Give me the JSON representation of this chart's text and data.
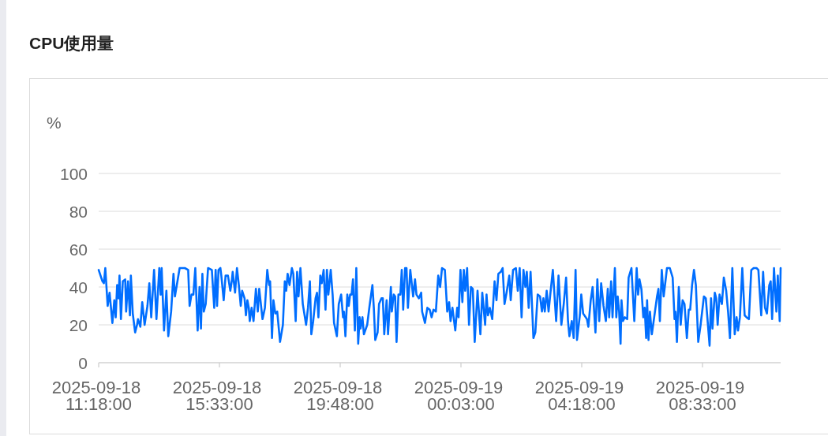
{
  "chart_data": {
    "type": "line",
    "title": "CPU使用量",
    "ylabel": "%",
    "xlim": [
      "2025-09-18T11:18",
      "2025-09-19T11:18"
    ],
    "xticks": [
      {
        "value": "2025-09-18T11:18",
        "label": "2025-09-18 11:18:00"
      },
      {
        "value": "2025-09-18T15:33",
        "label": "2025-09-18 15:33:00"
      },
      {
        "value": "2025-09-18T19:48",
        "label": "2025-09-18 19:48:00"
      },
      {
        "value": "2025-09-19T00:03",
        "label": "2025-09-19 00:03:00"
      },
      {
        "value": "2025-09-19T04:18",
        "label": "2025-09-19 04:18:00"
      },
      {
        "value": "2025-09-19T08:33",
        "label": "2025-09-19 08:33:00"
      }
    ],
    "ylim": [
      0,
      100
    ],
    "yticks": [
      0,
      20,
      40,
      60,
      80,
      100
    ],
    "grid": "y",
    "series": [
      {
        "color": "#006eff",
        "x": [
          "2025-09-18T11:18",
          "2025-09-18T11:26",
          "2025-09-18T11:29",
          "2025-09-18T11:32",
          "2025-09-18T11:37",
          "2025-09-18T11:41",
          "2025-09-18T11:47",
          "2025-09-18T11:51",
          "2025-09-18T11:54",
          "2025-09-18T11:57",
          "2025-09-18T12:00",
          "2025-09-18T12:02",
          "2025-09-18T12:05",
          "2025-09-18T12:09",
          "2025-09-18T12:14",
          "2025-09-18T12:16",
          "2025-09-18T12:20",
          "2025-09-18T12:24",
          "2025-09-18T12:26",
          "2025-09-18T12:30",
          "2025-09-18T12:35",
          "2025-09-18T12:39",
          "2025-09-18T12:41",
          "2025-09-18T12:46",
          "2025-09-18T12:50",
          "2025-09-18T12:55",
          "2025-09-18T13:01",
          "2025-09-18T13:05",
          "2025-09-18T13:09",
          "2025-09-18T13:15",
          "2025-09-18T13:20",
          "2025-09-18T13:26",
          "2025-09-18T13:29",
          "2025-09-18T13:31",
          "2025-09-18T13:36",
          "2025-09-18T13:41",
          "2025-09-18T13:45",
          "2025-09-18T13:51",
          "2025-09-18T13:56",
          "2025-09-18T13:59",
          "2025-09-18T14:09",
          "2025-09-18T14:20",
          "2025-09-18T14:27",
          "2025-09-18T14:30",
          "2025-09-18T14:34",
          "2025-09-18T14:38",
          "2025-09-18T14:42",
          "2025-09-18T14:47",
          "2025-09-18T14:51",
          "2025-09-18T14:54",
          "2025-09-18T14:57",
          "2025-09-18T15:00",
          "2025-09-18T15:04",
          "2025-09-18T15:09",
          "2025-09-18T15:17",
          "2025-09-18T15:22",
          "2025-09-18T15:25",
          "2025-09-18T15:28",
          "2025-09-18T15:31",
          "2025-09-18T15:35",
          "2025-09-18T15:37",
          "2025-09-18T15:42",
          "2025-09-18T15:46",
          "2025-09-18T15:51",
          "2025-09-18T15:56",
          "2025-09-18T15:59",
          "2025-09-18T16:01",
          "2025-09-18T16:06",
          "2025-09-18T16:10",
          "2025-09-18T16:14",
          "2025-09-18T16:18",
          "2025-09-18T16:21",
          "2025-09-18T16:26",
          "2025-09-18T16:29",
          "2025-09-18T16:32",
          "2025-09-18T16:35",
          "2025-09-18T16:37",
          "2025-09-18T16:41",
          "2025-09-18T16:45",
          "2025-09-18T16:50",
          "2025-09-18T16:54",
          "2025-09-18T16:57",
          "2025-09-18T17:04",
          "2025-09-18T17:09",
          "2025-09-18T17:14",
          "2025-09-18T17:18",
          "2025-09-18T17:20",
          "2025-09-18T17:24",
          "2025-09-18T17:27",
          "2025-09-18T17:31",
          "2025-09-18T17:35",
          "2025-09-18T17:41",
          "2025-09-18T17:47",
          "2025-09-18T17:51",
          "2025-09-18T17:54",
          "2025-09-18T17:57",
          "2025-09-18T18:01",
          "2025-09-18T18:06",
          "2025-09-18T18:09",
          "2025-09-18T18:14",
          "2025-09-18T18:17",
          "2025-09-18T18:20",
          "2025-09-18T18:24",
          "2025-09-18T18:29",
          "2025-09-18T18:36",
          "2025-09-18T18:40",
          "2025-09-18T18:44",
          "2025-09-18T18:47",
          "2025-09-18T18:51",
          "2025-09-18T18:56",
          "2025-09-18T18:59",
          "2025-09-18T19:02",
          "2025-09-18T19:06",
          "2025-09-18T19:09",
          "2025-09-18T19:13",
          "2025-09-18T19:17",
          "2025-09-18T19:20",
          "2025-09-18T19:23",
          "2025-09-18T19:28",
          "2025-09-18T19:32",
          "2025-09-18T19:35",
          "2025-09-18T19:41",
          "2025-09-18T19:45",
          "2025-09-18T19:50",
          "2025-09-18T19:54",
          "2025-09-18T19:56",
          "2025-09-18T19:59",
          "2025-09-18T20:03",
          "2025-09-18T20:06",
          "2025-09-18T20:09",
          "2025-09-18T20:12",
          "2025-09-18T20:15",
          "2025-09-18T20:19",
          "2025-09-18T20:22",
          "2025-09-18T20:26",
          "2025-09-18T20:29",
          "2025-09-18T20:31",
          "2025-09-18T20:35",
          "2025-09-18T20:38",
          "2025-09-18T20:45",
          "2025-09-18T20:50",
          "2025-09-18T20:56",
          "2025-09-18T20:59",
          "2025-09-18T21:02",
          "2025-09-18T21:07",
          "2025-09-18T21:10",
          "2025-09-18T21:15",
          "2025-09-18T21:18",
          "2025-09-18T21:21",
          "2025-09-18T21:26",
          "2025-09-18T21:29",
          "2025-09-18T21:35",
          "2025-09-18T21:37",
          "2025-09-18T21:41",
          "2025-09-18T21:44",
          "2025-09-18T21:47",
          "2025-09-18T21:51",
          "2025-09-18T21:55",
          "2025-09-18T21:58",
          "2025-09-18T22:01",
          "2025-09-18T22:05",
          "2025-09-18T22:08",
          "2025-09-18T22:11",
          "2025-09-18T22:16",
          "2025-09-18T22:22",
          "2025-09-18T22:26",
          "2025-09-18T22:29",
          "2025-09-18T22:34",
          "2025-09-18T22:39",
          "2025-09-18T22:41",
          "2025-09-18T22:47",
          "2025-09-18T22:52",
          "2025-09-18T22:57",
          "2025-09-18T23:01",
          "2025-09-18T23:05",
          "2025-09-18T23:10",
          "2025-09-18T23:15",
          "2025-09-18T23:19",
          "2025-09-18T23:23",
          "2025-09-18T23:29",
          "2025-09-18T23:34",
          "2025-09-18T23:38",
          "2025-09-18T23:41",
          "2025-09-18T23:45",
          "2025-09-18T23:51",
          "2025-09-18T23:55",
          "2025-09-18T23:58",
          "2025-09-19T00:02",
          "2025-09-19T00:06",
          "2025-09-19T00:09",
          "2025-09-19T00:12",
          "2025-09-19T00:16",
          "2025-09-19T00:20",
          "2025-09-19T00:24",
          "2025-09-19T00:28",
          "2025-09-19T00:32",
          "2025-09-19T00:38",
          "2025-09-19T00:44",
          "2025-09-19T00:48",
          "2025-09-19T00:54",
          "2025-09-19T00:57",
          "2025-09-19T01:00",
          "2025-09-19T01:04",
          "2025-09-19T01:09",
          "2025-09-19T01:14",
          "2025-09-19T01:18",
          "2025-09-19T01:22",
          "2025-09-19T01:27",
          "2025-09-19T01:31",
          "2025-09-19T01:35",
          "2025-09-19T01:40",
          "2025-09-19T01:45",
          "2025-09-19T01:48",
          "2025-09-19T01:53",
          "2025-09-19T01:59",
          "2025-09-19T02:03",
          "2025-09-19T02:07",
          "2025-09-19T02:11",
          "2025-09-19T02:15",
          "2025-09-19T02:19",
          "2025-09-19T02:22",
          "2025-09-19T02:26",
          "2025-09-19T02:30",
          "2025-09-19T02:36",
          "2025-09-19T02:40",
          "2025-09-19T02:45",
          "2025-09-19T02:50",
          "2025-09-19T02:54",
          "2025-09-19T02:57",
          "2025-09-19T03:00",
          "2025-09-19T03:04",
          "2025-09-19T03:08",
          "2025-09-19T03:12",
          "2025-09-19T03:17",
          "2025-09-19T03:24",
          "2025-09-19T03:29",
          "2025-09-19T03:35",
          "2025-09-19T03:40",
          "2025-09-19T03:45",
          "2025-09-19T03:49",
          "2025-09-19T03:52",
          "2025-09-19T03:57",
          "2025-09-19T04:01",
          "2025-09-19T04:05",
          "2025-09-19T04:08",
          "2025-09-19T04:14",
          "2025-09-19T04:17",
          "2025-09-19T04:21",
          "2025-09-19T04:29",
          "2025-09-19T04:32",
          "2025-09-19T04:37",
          "2025-09-19T04:41",
          "2025-09-19T04:47",
          "2025-09-19T04:51",
          "2025-09-19T04:55",
          "2025-09-19T04:59",
          "2025-09-19T05:04",
          "2025-09-19T05:09",
          "2025-09-19T05:13",
          "2025-09-19T05:16",
          "2025-09-19T05:20",
          "2025-09-19T05:23",
          "2025-09-19T05:28",
          "2025-09-19T05:31",
          "2025-09-19T05:34",
          "2025-09-19T05:37",
          "2025-09-19T05:40",
          "2025-09-19T05:42",
          "2025-09-19T05:45",
          "2025-09-19T05:49",
          "2025-09-19T05:54",
          "2025-09-19T05:57",
          "2025-09-19T06:03",
          "2025-09-19T06:09",
          "2025-09-19T06:14",
          "2025-09-19T06:17",
          "2025-09-19T06:20",
          "2025-09-19T06:24",
          "2025-09-19T06:28",
          "2025-09-19T06:31",
          "2025-09-19T06:34",
          "2025-09-19T06:36",
          "2025-09-19T06:39",
          "2025-09-19T06:42",
          "2025-09-19T06:46",
          "2025-09-19T06:51",
          "2025-09-19T06:57",
          "2025-09-19T07:00",
          "2025-09-19T07:03",
          "2025-09-19T07:07",
          "2025-09-19T07:11",
          "2025-09-19T07:18",
          "2025-09-19T07:24",
          "2025-09-19T07:30",
          "2025-09-19T07:34",
          "2025-09-19T07:36",
          "2025-09-19T07:39",
          "2025-09-19T07:43",
          "2025-09-19T07:47",
          "2025-09-19T07:51",
          "2025-09-19T07:55",
          "2025-09-19T08:00",
          "2025-09-19T08:04",
          "2025-09-19T08:07",
          "2025-09-19T08:11",
          "2025-09-19T08:15",
          "2025-09-19T08:19",
          "2025-09-19T08:24",
          "2025-09-19T08:29",
          "2025-09-19T08:36",
          "2025-09-19T08:40",
          "2025-09-19T08:48",
          "2025-09-19T08:51",
          "2025-09-19T08:54",
          "2025-09-19T08:59",
          "2025-09-19T09:02",
          "2025-09-19T09:05",
          "2025-09-19T09:09",
          "2025-09-19T09:14",
          "2025-09-19T09:18",
          "2025-09-19T09:23",
          "2025-09-19T09:27",
          "2025-09-19T09:31",
          "2025-09-19T09:36",
          "2025-09-19T09:41",
          "2025-09-19T09:45",
          "2025-09-19T09:48",
          "2025-09-19T09:52",
          "2025-09-19T09:57",
          "2025-09-19T10:02",
          "2025-09-19T10:06",
          "2025-09-19T10:11",
          "2025-09-19T10:16",
          "2025-09-19T10:21",
          "2025-09-19T10:27",
          "2025-09-19T10:31",
          "2025-09-19T10:37",
          "2025-09-19T10:41",
          "2025-09-19T10:45",
          "2025-09-19T10:49",
          "2025-09-19T10:54",
          "2025-09-19T10:57",
          "2025-09-19T11:00",
          "2025-09-19T11:04",
          "2025-09-19T11:09",
          "2025-09-19T11:12",
          "2025-09-19T11:16",
          "2025-09-19T11:18"
        ],
        "values": [
          49,
          43,
          42,
          50,
          30,
          37,
          21,
          33,
          24,
          41,
          34,
          46,
          23,
          43,
          44,
          27,
          43,
          25,
          46,
          26,
          16,
          20,
          23,
          19,
          32,
          20,
          30,
          42,
          24,
          49,
          23,
          50,
          36,
          50,
          17,
          38,
          14,
          27,
          47,
          35,
          50,
          50,
          49,
          30,
          36,
          36,
          50,
          17,
          40,
          18,
          47,
          27,
          31,
          50,
          49,
          29,
          49,
          30,
          49,
          50,
          46,
          33,
          46,
          46,
          38,
          43,
          48,
          37,
          50,
          41,
          30,
          38,
          34,
          25,
          33,
          29,
          22,
          29,
          22,
          39,
          27,
          39,
          23,
          29,
          49,
          41,
          43,
          13,
          33,
          26,
          27,
          11,
          20,
          43,
          38,
          47,
          41,
          50,
          47,
          22,
          48,
          35,
          50,
          31,
          20,
          29,
          43,
          15,
          22,
          34,
          37,
          24,
          46,
          42,
          49,
          28,
          49,
          36,
          49,
          36,
          21,
          14,
          31,
          36,
          24,
          27,
          14,
          36,
          30,
          36,
          36,
          44,
          17,
          50,
          10,
          24,
          18,
          24,
          15,
          20,
          30,
          41,
          29,
          12,
          16,
          31,
          34,
          34,
          15,
          33,
          15,
          40,
          27,
          36,
          35,
          11,
          36,
          36,
          49,
          28,
          50,
          50,
          29,
          49,
          35,
          44,
          36,
          34,
          37,
          27,
          21,
          29,
          28,
          24,
          28,
          27,
          46,
          40,
          50,
          49,
          27,
          32,
          22,
          29,
          17,
          29,
          24,
          49,
          32,
          49,
          38,
          50,
          20,
          40,
          39,
          11,
          38,
          15,
          37,
          20,
          36,
          25,
          29,
          23,
          43,
          33,
          47,
          48,
          50,
          31,
          38,
          46,
          33,
          49,
          50,
          38,
          50,
          24,
          49,
          40,
          48,
          29,
          48,
          13,
          16,
          36,
          35,
          27,
          34,
          27,
          38,
          27,
          37,
          49,
          22,
          46,
          20,
          31,
          45,
          22,
          14,
          22,
          13,
          49,
          12,
          25,
          36,
          26,
          23,
          19,
          33,
          40,
          16,
          44,
          22,
          42,
          30,
          22,
          39,
          24,
          43,
          24,
          50,
          24,
          35,
          27,
          10,
          33,
          22,
          24,
          23,
          45,
          50,
          22,
          50,
          36,
          44,
          39,
          24,
          29,
          13,
          33,
          12,
          27,
          15,
          24,
          35,
          39,
          22,
          49,
          35,
          50,
          50,
          45,
          23,
          27,
          11,
          40,
          20,
          33,
          31,
          13,
          28,
          28,
          41,
          49,
          41,
          11,
          20,
          35,
          34,
          9,
          34,
          18,
          37,
          34,
          20,
          36,
          31,
          45,
          38,
          27,
          13,
          50,
          15,
          24,
          17,
          24,
          50,
          25,
          24,
          23,
          49,
          50,
          50,
          49,
          25,
          48,
          29,
          26,
          41,
          43,
          23,
          50,
          27,
          46,
          22,
          50
        ]
      }
    ]
  }
}
